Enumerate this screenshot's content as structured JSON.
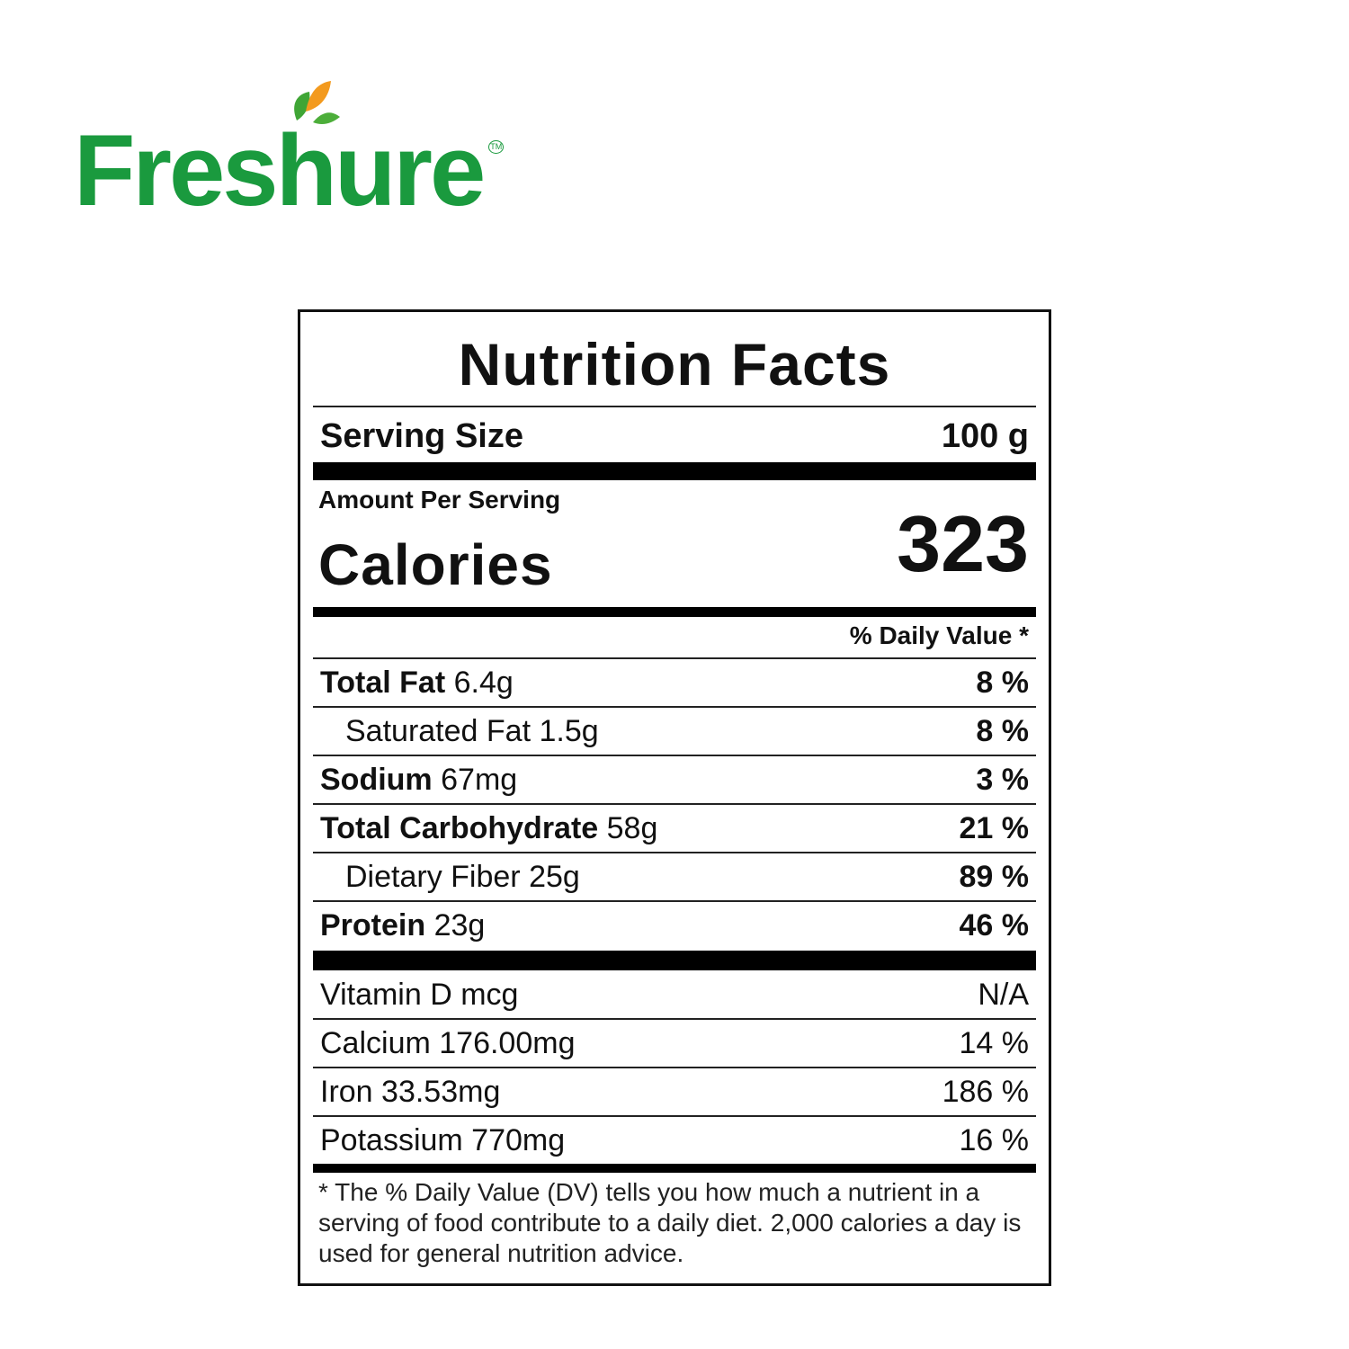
{
  "brand": {
    "name": "Freshure",
    "trademark": "TM",
    "green": "#1a9a3e",
    "leaf_orange": "#f39a1e"
  },
  "label": {
    "title": "Nutrition Facts",
    "serving_size_label": "Serving Size",
    "serving_size_value": "100 g",
    "amount_per_serving": "Amount Per Serving",
    "calories_label": "Calories",
    "calories_value": "323",
    "daily_value_header": "% Daily Value *",
    "nutrients": [
      {
        "name": "Total Fat",
        "amount": "6.4g",
        "dv": "8 %",
        "bold": true,
        "indent": false
      },
      {
        "name": "Saturated Fat",
        "amount": "1.5g",
        "dv": "8 %",
        "bold": false,
        "indent": true
      },
      {
        "name": "Sodium",
        "amount": "67mg",
        "dv": "3 %",
        "bold": true,
        "indent": false
      },
      {
        "name": "Total Carbohydrate",
        "amount": "58g",
        "dv": "21 %",
        "bold": true,
        "indent": false
      },
      {
        "name": "Dietary Fiber",
        "amount": "25g",
        "dv": "89 %",
        "bold": false,
        "indent": true
      },
      {
        "name": "Protein",
        "amount": "23g",
        "dv": "46 %",
        "bold": true,
        "indent": false
      }
    ],
    "vitamins": [
      {
        "text": "Vitamin D mcg",
        "dv": "N/A"
      },
      {
        "text": "Calcium 176.00mg",
        "dv": "14 %"
      },
      {
        "text": "Iron 33.53mg",
        "dv": "186 %"
      },
      {
        "text": "Potassium 770mg",
        "dv": "16 %"
      }
    ],
    "footnote": "* The % Daily Value (DV) tells you how much a nutrient in a serving of food contribute to a daily diet. 2,000 calories a day is used for general nutrition advice."
  }
}
